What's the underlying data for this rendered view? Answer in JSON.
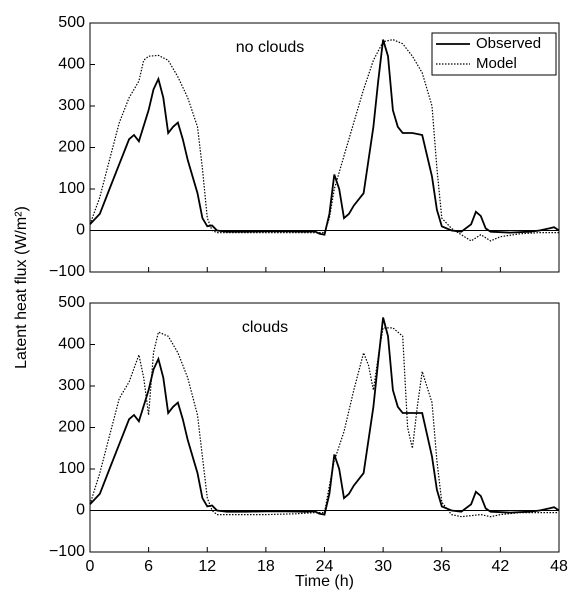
{
  "chart_data": [
    {
      "type": "line",
      "annotation": "no clouds",
      "ylabel": "Latent heat flux (W/m²)",
      "xlim": [
        0,
        48
      ],
      "xticks": [
        0,
        6,
        12,
        18,
        24,
        30,
        36,
        42,
        48
      ],
      "xticklabels": false,
      "ylim": [
        -100,
        500
      ],
      "yticks": [
        {
          "value": -100,
          "label": "−100"
        },
        0,
        100,
        200,
        300,
        400,
        500
      ],
      "zero_line": true,
      "legend": "upper right",
      "series": [
        {
          "name": "Observed",
          "color": "#000000",
          "style": "solid",
          "x": [
            0,
            1,
            2,
            3,
            4,
            4.5,
            5,
            6,
            6.5,
            7,
            7.5,
            8,
            8.5,
            9,
            9.5,
            10,
            11,
            11.5,
            12,
            12.5,
            13,
            14,
            16,
            18,
            20,
            22,
            23,
            23.5,
            24,
            24.5,
            25,
            25.5,
            26,
            26.5,
            27,
            28,
            29,
            29.5,
            30,
            30.5,
            31,
            31.5,
            32,
            33,
            34,
            35,
            35.5,
            36,
            37,
            38,
            39,
            39.5,
            40,
            40.5,
            41,
            43,
            45,
            46,
            47,
            47.5,
            48
          ],
          "values": [
            15,
            40,
            100,
            160,
            220,
            230,
            215,
            290,
            340,
            365,
            320,
            235,
            250,
            260,
            220,
            170,
            90,
            30,
            10,
            12,
            0,
            -3,
            -3,
            -2,
            -2,
            -3,
            -2,
            -8,
            -10,
            40,
            135,
            100,
            30,
            40,
            60,
            90,
            250,
            360,
            460,
            420,
            290,
            250,
            235,
            235,
            230,
            130,
            50,
            10,
            0,
            -3,
            15,
            45,
            35,
            5,
            -3,
            -5,
            -3,
            0,
            5,
            8,
            0
          ]
        },
        {
          "name": "Model",
          "color": "#000000",
          "style": "dotted",
          "x": [
            0,
            1,
            2,
            3,
            4,
            5,
            5.5,
            6,
            7,
            8,
            9,
            10,
            11,
            11.5,
            12,
            12.5,
            13,
            15,
            18,
            21,
            23,
            24,
            24.5,
            25,
            26,
            27,
            28,
            29,
            30,
            31,
            32,
            33,
            34,
            35,
            35.5,
            36,
            37,
            38,
            39,
            40,
            41,
            42,
            44,
            46,
            48
          ],
          "values": [
            15,
            80,
            170,
            260,
            320,
            360,
            410,
            420,
            422,
            410,
            370,
            320,
            250,
            150,
            30,
            0,
            -5,
            -5,
            -5,
            -5,
            -5,
            -5,
            30,
            100,
            180,
            260,
            340,
            410,
            455,
            460,
            450,
            420,
            380,
            300,
            150,
            30,
            5,
            -10,
            -25,
            -10,
            -25,
            -15,
            -8,
            -5,
            -5
          ]
        }
      ]
    },
    {
      "type": "line",
      "annotation": "clouds",
      "xlabel": "Time (h)",
      "xlim": [
        0,
        48
      ],
      "xticks": [
        0,
        6,
        12,
        18,
        24,
        30,
        36,
        42,
        48
      ],
      "xticklabels": true,
      "ylim": [
        -100,
        500
      ],
      "yticks": [
        {
          "value": -100,
          "label": "−100"
        },
        0,
        100,
        200,
        300,
        400,
        500
      ],
      "zero_line": true,
      "series": [
        {
          "name": "Observed",
          "color": "#000000",
          "style": "solid",
          "x": [
            0,
            1,
            2,
            3,
            4,
            4.5,
            5,
            6,
            6.5,
            7,
            7.5,
            8,
            8.5,
            9,
            9.5,
            10,
            11,
            11.5,
            12,
            12.5,
            13,
            14,
            16,
            18,
            20,
            22,
            23,
            23.5,
            24,
            24.5,
            25,
            25.5,
            26,
            26.5,
            27,
            28,
            29,
            29.5,
            30,
            30.5,
            31,
            31.5,
            32,
            33,
            34,
            35,
            35.5,
            36,
            37,
            38,
            39,
            39.5,
            40,
            40.5,
            41,
            43,
            45,
            46,
            47,
            47.5,
            48
          ],
          "values": [
            15,
            40,
            100,
            160,
            220,
            230,
            215,
            290,
            340,
            365,
            320,
            235,
            250,
            260,
            220,
            170,
            90,
            30,
            10,
            12,
            0,
            -3,
            -3,
            -2,
            -2,
            -3,
            -2,
            -8,
            -10,
            40,
            135,
            100,
            30,
            40,
            60,
            90,
            250,
            360,
            465,
            420,
            290,
            250,
            235,
            235,
            235,
            130,
            50,
            10,
            0,
            -3,
            15,
            45,
            35,
            5,
            -3,
            -5,
            -3,
            0,
            5,
            8,
            0
          ]
        },
        {
          "name": "Model",
          "color": "#000000",
          "style": "dotted",
          "x": [
            0,
            1,
            2,
            3,
            4,
            5,
            5.5,
            6,
            6.5,
            7,
            8,
            9,
            10,
            11,
            12,
            12.5,
            13,
            15,
            18,
            21,
            23,
            24,
            24.5,
            25,
            26,
            27,
            28,
            28.5,
            29,
            29.5,
            30,
            31,
            32,
            32.5,
            33,
            33.5,
            34,
            35,
            35.5,
            36,
            37,
            38,
            40,
            41,
            42,
            44,
            46,
            48
          ],
          "values": [
            15,
            90,
            180,
            270,
            310,
            375,
            320,
            230,
            380,
            430,
            420,
            380,
            320,
            230,
            30,
            0,
            -10,
            -10,
            -10,
            -8,
            -5,
            -5,
            60,
            120,
            190,
            290,
            380,
            350,
            290,
            370,
            440,
            440,
            420,
            200,
            150,
            250,
            335,
            260,
            120,
            20,
            -10,
            -15,
            -10,
            -15,
            -10,
            -5,
            -5,
            -5
          ]
        }
      ]
    }
  ]
}
